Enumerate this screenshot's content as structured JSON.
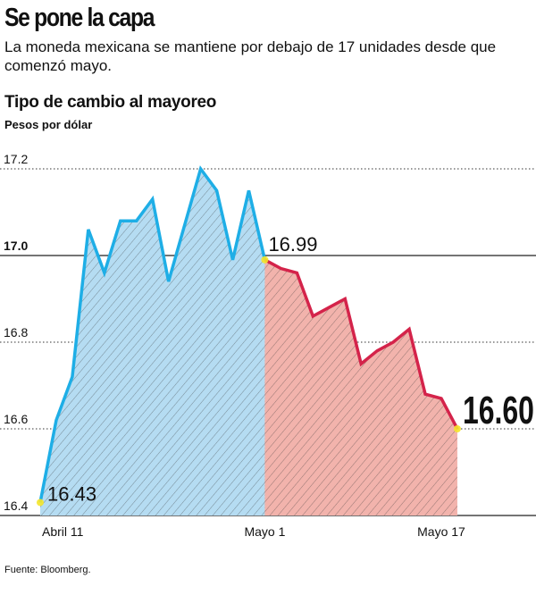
{
  "header": {
    "title": "Se pone la capa",
    "subtitle": "La moneda mexicana se mantiene por debajo de 17 unidades desde que comenzó mayo."
  },
  "source": "Fuente: Bloomberg.",
  "colors": {
    "april": "#1eaee6",
    "april_fill": "#b5dcf2",
    "may": "#d4234a",
    "may_fill": "#f2b3ac",
    "marker": "#f5e62a"
  },
  "chart_data": {
    "type": "area",
    "title": "Tipo de cambio al mayoreo",
    "ylabel": "Pesos por dólar",
    "ylim": [
      16.4,
      17.2
    ],
    "yticks": [
      "16.4",
      "16.6",
      "16.8",
      "17.0",
      "17.2"
    ],
    "xticks": [
      {
        "label": "Abril 11",
        "index": 0
      },
      {
        "label": "Mayo 1",
        "index": 14
      },
      {
        "label": "Mayo 17",
        "index": 25
      }
    ],
    "series": [
      {
        "name": "Abril",
        "values": [
          16.43,
          16.62,
          16.72,
          17.06,
          16.96,
          17.08,
          17.08,
          17.13,
          16.94,
          17.07,
          17.2,
          17.15,
          16.99,
          17.15,
          16.99
        ]
      },
      {
        "name": "Mayo",
        "start_index": 14,
        "values": [
          16.99,
          16.97,
          16.96,
          16.86,
          16.88,
          16.9,
          16.75,
          16.78,
          16.8,
          16.83,
          16.68,
          16.67,
          16.6
        ]
      }
    ],
    "annotations": [
      {
        "label": "16.43",
        "index": 0
      },
      {
        "label": "16.99",
        "index": 14
      },
      {
        "label": "16.60",
        "index": 26
      }
    ]
  }
}
